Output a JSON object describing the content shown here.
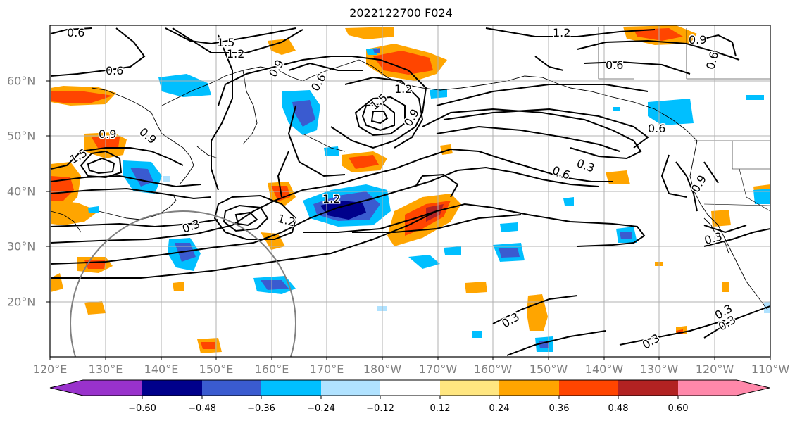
{
  "title": "2022122700 F024",
  "lon_ticks": [
    "120°E",
    "130°E",
    "140°E",
    "150°E",
    "160°E",
    "170°E",
    "180°W",
    "170°W",
    "160°W",
    "150°W",
    "140°W",
    "130°W",
    "120°W",
    "110°W"
  ],
  "lat_ticks": [
    "60°N",
    "50°N",
    "40°N",
    "30°N",
    "20°N"
  ],
  "colorbar": {
    "tick_labels": [
      "−0.60",
      "−0.48",
      "−0.36",
      "−0.24",
      "−0.12",
      "0.12",
      "0.24",
      "0.36",
      "0.48",
      "0.60"
    ],
    "colors": [
      "#9932cc",
      "#00008b",
      "#3a5bd0",
      "#00bfff",
      "#b0e2ff",
      "#ffffff",
      "#ffe680",
      "#ffa500",
      "#ff4500",
      "#b22222",
      "#ff88aa"
    ]
  },
  "contour_labels": [
    "0.6",
    "1.5",
    "1.2",
    "0.6",
    "0.9",
    "0.6",
    "1.2",
    "0.9",
    "0.6",
    "1.5",
    "1.2",
    "0.9",
    "0.9",
    "0.6",
    "1.5",
    "0.9",
    "0.3",
    "0.6",
    "1.2",
    "1.2",
    "0.3",
    "0.6",
    "0.9",
    "0.3",
    "0.3",
    "0.3",
    "0.3",
    "0.3"
  ],
  "map": {
    "projection": "PlateCarree",
    "extent": "120°E–110°W, 10°N–70°N",
    "grid": true
  }
}
